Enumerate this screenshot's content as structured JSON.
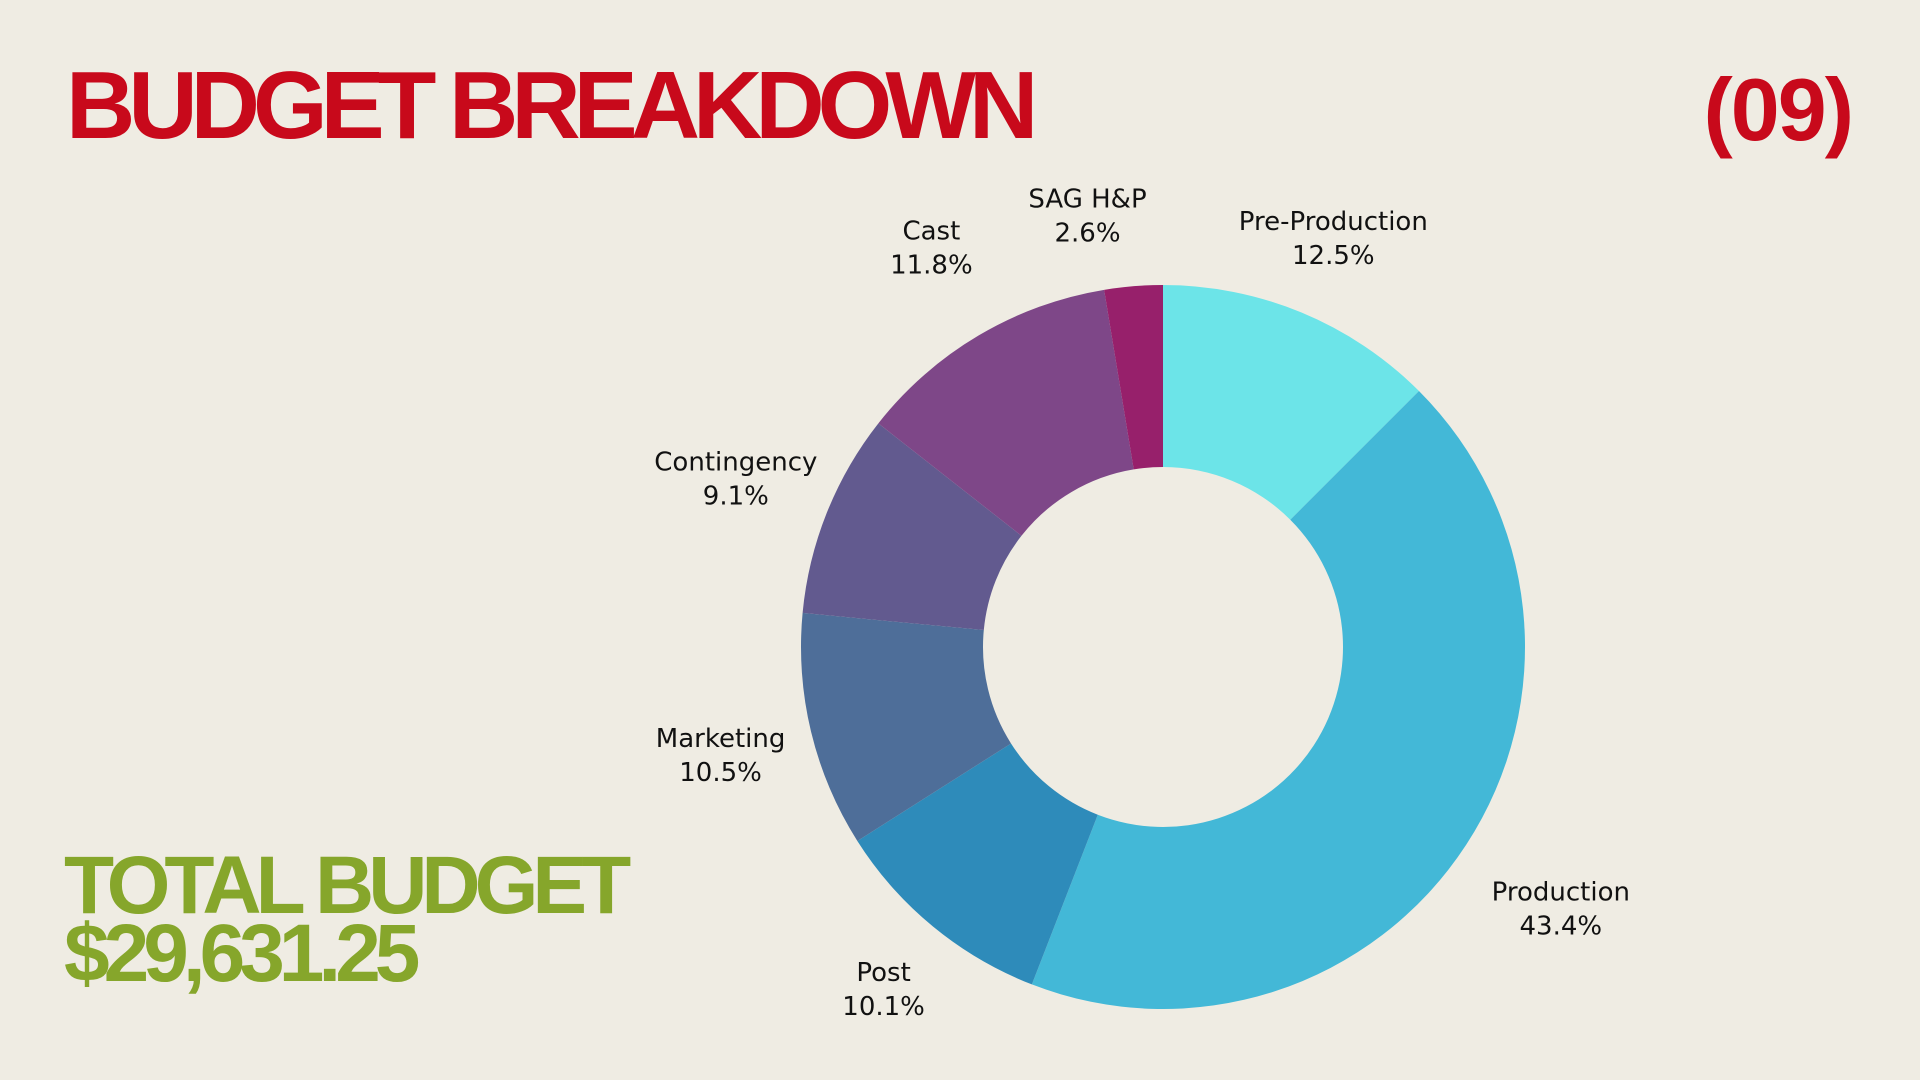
{
  "header": {
    "title": "BUDGET BREAKDOWN",
    "page_number": "(09)"
  },
  "total": {
    "label": "TOTAL BUDGET",
    "amount": "$29,631.25"
  },
  "colors": {
    "title": "#c8091b",
    "total": "#86a62b",
    "background": "#efece3"
  },
  "chart_data": {
    "type": "pie",
    "donut": true,
    "start": "top",
    "direction": "clockwise",
    "slices": [
      {
        "name": "Pre-Production",
        "value": 12.5,
        "label": "12.5%",
        "color": "#6ce4e8"
      },
      {
        "name": "Production",
        "value": 43.4,
        "label": "43.4%",
        "color": "#43b8d7"
      },
      {
        "name": "Post",
        "value": 10.1,
        "label": "10.1%",
        "color": "#2e8bba"
      },
      {
        "name": "Marketing",
        "value": 10.5,
        "label": "10.5%",
        "color": "#4e6e99"
      },
      {
        "name": "Contingency",
        "value": 9.1,
        "label": "9.1%",
        "color": "#625a8f"
      },
      {
        "name": "Cast",
        "value": 11.8,
        "label": "11.8%",
        "color": "#7e4788"
      },
      {
        "name": "SAG H&P",
        "value": 2.6,
        "label": "2.6%",
        "color": "#97206b"
      }
    ]
  }
}
